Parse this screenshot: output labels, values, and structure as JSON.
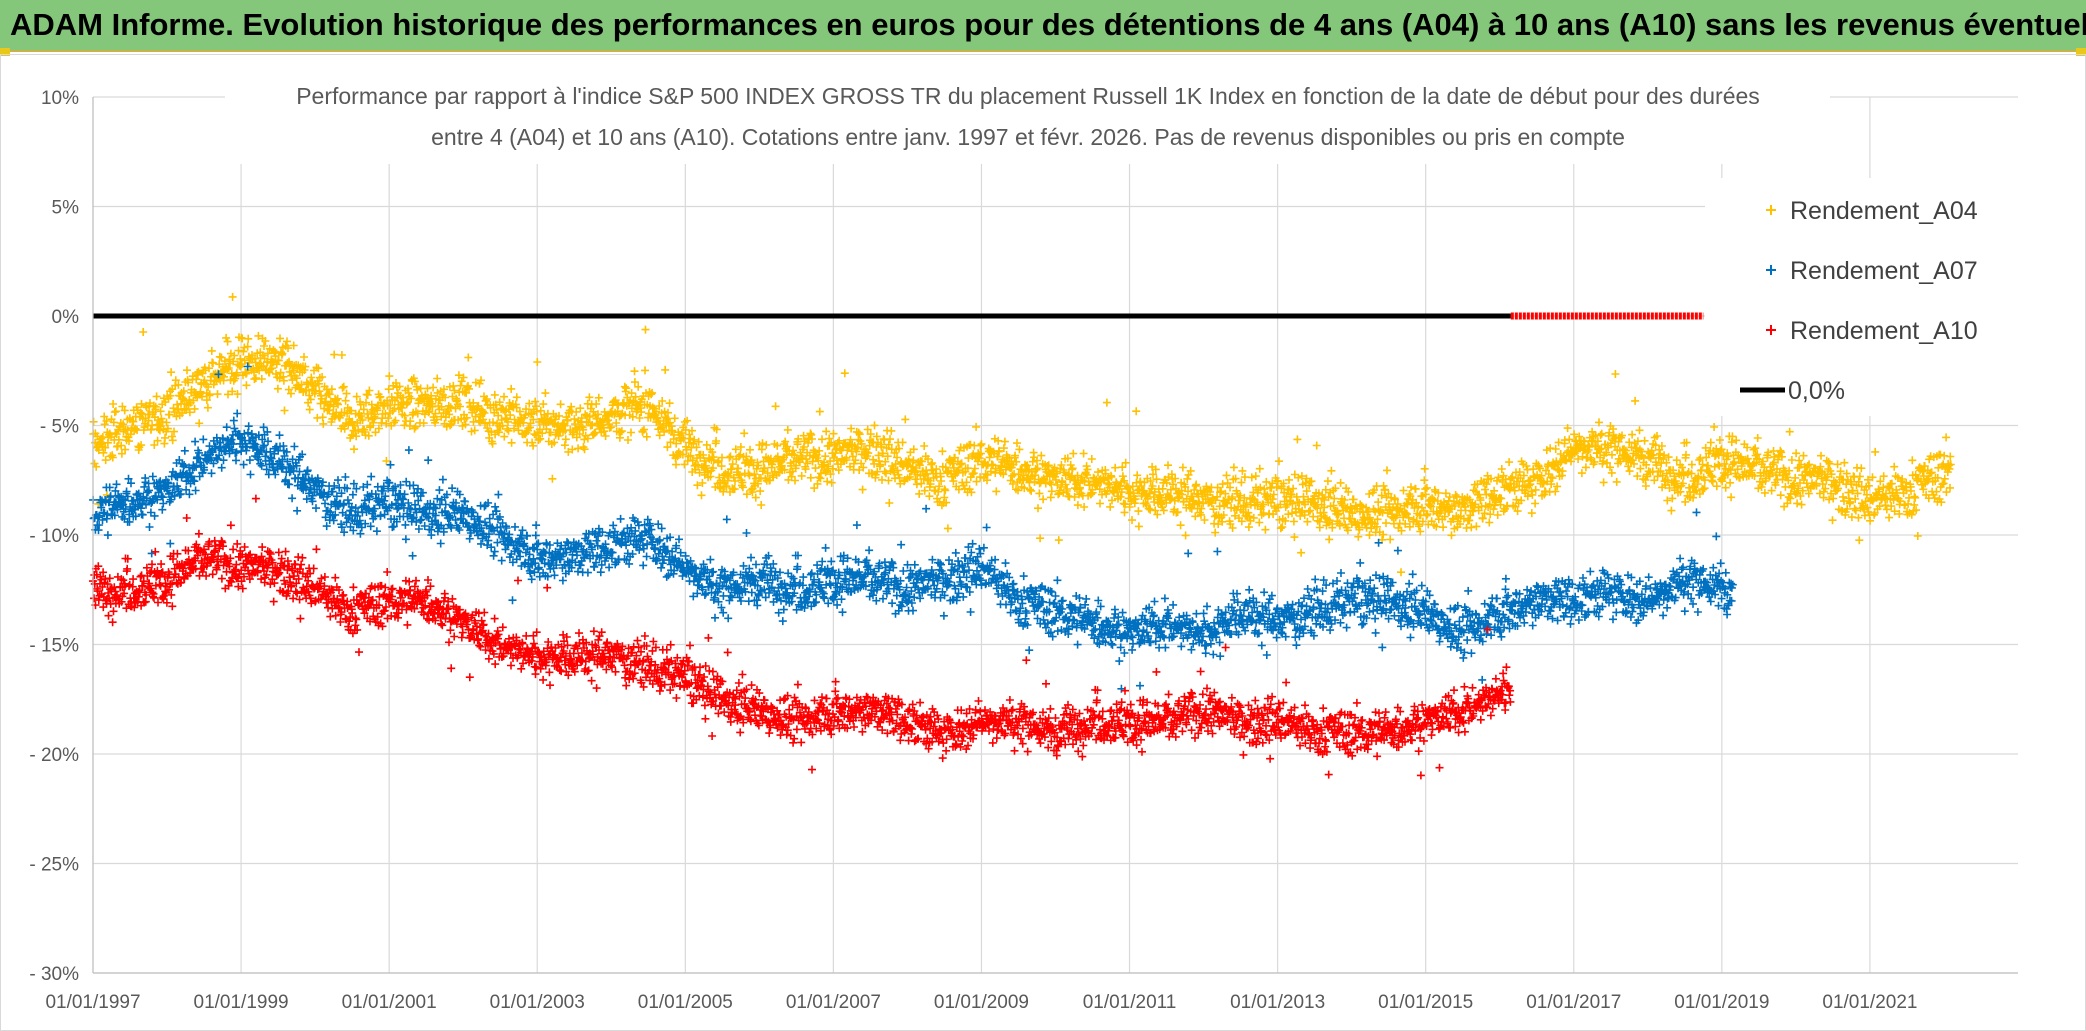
{
  "banner": {
    "title": "ADAM Informe. Evolution historique des performances en euros pour des détentions de 4 ans (A04) à 10 ans (A10) sans les revenus éventuels"
  },
  "chart_data": {
    "type": "scatter",
    "title_line1": "Performance par rapport à l'indice S&P 500 INDEX GROSS TR  du placement Russell 1K Index en fonction de la date de début pour des durées",
    "title_line2": "entre 4 (A04) et 10 ans (A10). Cotations entre janv. 1997 et févr. 2026. Pas de revenus disponibles ou pris en compte",
    "x_range": [
      1997.0,
      2023.0
    ],
    "ylim": [
      -30,
      10
    ],
    "y_ticks": [
      10,
      5,
      0,
      -5,
      -10,
      -15,
      -20,
      -25,
      -30
    ],
    "y_tick_labels": [
      "10%",
      "5%",
      "0%",
      "- 5%",
      "- 10%",
      "- 15%",
      "- 20%",
      "- 25%",
      "- 30%"
    ],
    "x_ticks": [
      1997,
      1999,
      2001,
      2003,
      2005,
      2007,
      2009,
      2011,
      2013,
      2015,
      2017,
      2019,
      2021
    ],
    "x_tick_labels": [
      "01/01/1997",
      "01/01/1999",
      "01/01/2001",
      "01/01/2003",
      "01/01/2005",
      "01/01/2007",
      "01/01/2009",
      "01/01/2011",
      "01/01/2013",
      "01/01/2015",
      "01/01/2017",
      "01/01/2019",
      "01/01/2021"
    ],
    "grid": true,
    "legend_position": "top-right",
    "series": [
      {
        "name": "Rendement_A04",
        "color": "#ffc000",
        "x_range": [
          1997.0,
          2022.1
        ],
        "x": [
          1997.0,
          1997.5,
          1998.0,
          1998.5,
          1999.0,
          1999.5,
          2000.0,
          2000.5,
          2001.0,
          2001.5,
          2002.0,
          2002.5,
          2003.0,
          2003.5,
          2004.0,
          2004.5,
          2005.0,
          2005.5,
          2006.0,
          2006.5,
          2007.0,
          2007.5,
          2008.0,
          2008.5,
          2009.0,
          2009.5,
          2010.0,
          2010.5,
          2011.0,
          2011.5,
          2012.0,
          2012.5,
          2013.0,
          2013.5,
          2014.0,
          2014.5,
          2015.0,
          2015.5,
          2016.0,
          2016.5,
          2017.0,
          2017.5,
          2018.0,
          2018.5,
          2019.0,
          2019.5,
          2020.0,
          2020.5,
          2021.0,
          2021.5,
          2022.1
        ],
        "y": [
          -6.0,
          -5.0,
          -4.5,
          -3.0,
          -2.0,
          -2.0,
          -3.5,
          -5.0,
          -4.0,
          -4.0,
          -4.0,
          -4.5,
          -5.0,
          -5.0,
          -4.5,
          -4.0,
          -6.0,
          -7.0,
          -7.0,
          -6.5,
          -6.5,
          -6.0,
          -7.0,
          -7.5,
          -6.5,
          -7.0,
          -7.5,
          -7.5,
          -8.0,
          -8.0,
          -8.5,
          -8.5,
          -8.5,
          -8.5,
          -9.0,
          -9.0,
          -8.5,
          -9.0,
          -8.0,
          -7.5,
          -6.0,
          -6.0,
          -6.5,
          -7.5,
          -6.5,
          -7.0,
          -7.5,
          -7.5,
          -8.5,
          -8.0,
          -7.0
        ],
        "spread": 1.3
      },
      {
        "name": "Rendement_A07",
        "color": "#0070c0",
        "x_range": [
          1997.0,
          2019.15
        ],
        "x": [
          1997.0,
          1997.5,
          1998.0,
          1998.5,
          1999.0,
          1999.5,
          2000.0,
          2000.5,
          2001.0,
          2001.5,
          2002.0,
          2002.5,
          2003.0,
          2003.5,
          2004.0,
          2004.5,
          2005.0,
          2005.5,
          2006.0,
          2006.5,
          2007.0,
          2007.5,
          2008.0,
          2008.5,
          2009.0,
          2009.5,
          2010.0,
          2010.5,
          2011.0,
          2011.5,
          2012.0,
          2012.5,
          2013.0,
          2013.5,
          2014.0,
          2014.5,
          2015.0,
          2015.5,
          2016.0,
          2016.5,
          2017.0,
          2017.5,
          2018.0,
          2018.5,
          2019.15
        ],
        "y": [
          -9.0,
          -8.5,
          -8.0,
          -6.5,
          -5.5,
          -6.5,
          -8.0,
          -9.0,
          -8.5,
          -9.0,
          -9.0,
          -10.0,
          -11.0,
          -11.0,
          -10.5,
          -10.0,
          -11.5,
          -12.5,
          -12.0,
          -12.5,
          -12.0,
          -12.0,
          -12.5,
          -12.0,
          -11.5,
          -13.0,
          -13.5,
          -14.0,
          -14.5,
          -14.0,
          -14.5,
          -13.5,
          -14.0,
          -13.5,
          -13.0,
          -13.0,
          -13.5,
          -14.5,
          -13.5,
          -13.0,
          -13.0,
          -12.5,
          -13.0,
          -12.0,
          -12.5
        ],
        "spread": 1.2
      },
      {
        "name": "Rendement_A10",
        "color": "#ff0000",
        "x_range": [
          1997.0,
          2016.15
        ],
        "x": [
          1997.0,
          1997.5,
          1998.0,
          1998.5,
          1999.0,
          1999.5,
          2000.0,
          2000.5,
          2001.0,
          2001.5,
          2002.0,
          2002.5,
          2003.0,
          2003.5,
          2004.0,
          2004.5,
          2005.0,
          2005.5,
          2006.0,
          2006.5,
          2007.0,
          2007.5,
          2008.0,
          2008.5,
          2009.0,
          2009.5,
          2010.0,
          2010.5,
          2011.0,
          2011.5,
          2012.0,
          2012.5,
          2013.0,
          2013.5,
          2014.0,
          2014.5,
          2015.0,
          2015.5,
          2016.15
        ],
        "y": [
          -12.5,
          -12.5,
          -12.0,
          -11.0,
          -11.5,
          -11.5,
          -12.5,
          -13.5,
          -13.0,
          -13.0,
          -14.0,
          -15.0,
          -15.5,
          -15.5,
          -15.5,
          -16.0,
          -16.5,
          -17.5,
          -18.0,
          -18.5,
          -18.0,
          -18.0,
          -18.5,
          -19.0,
          -18.5,
          -18.5,
          -19.0,
          -18.5,
          -18.5,
          -18.5,
          -18.0,
          -18.5,
          -18.5,
          -19.0,
          -19.0,
          -19.0,
          -18.5,
          -18.0,
          -17.0
        ],
        "spread": 1.1
      }
    ],
    "reference_line": {
      "name": "0,0%",
      "value": 0,
      "color": "#000000",
      "x_range": [
        1997.0,
        2016.15
      ],
      "red_dashed_x_range": [
        2016.15,
        2018.75
      ],
      "end_marker_x": 2023.0
    },
    "legend": [
      {
        "label": "Rendement_A04",
        "color": "#ffc000",
        "marker": "plus"
      },
      {
        "label": "Rendement_A07",
        "color": "#0070c0",
        "marker": "plus"
      },
      {
        "label": "Rendement_A10",
        "color": "#ff0000",
        "marker": "plus"
      },
      {
        "label": "0,0%",
        "color": "#000000",
        "marker": "line"
      }
    ]
  }
}
